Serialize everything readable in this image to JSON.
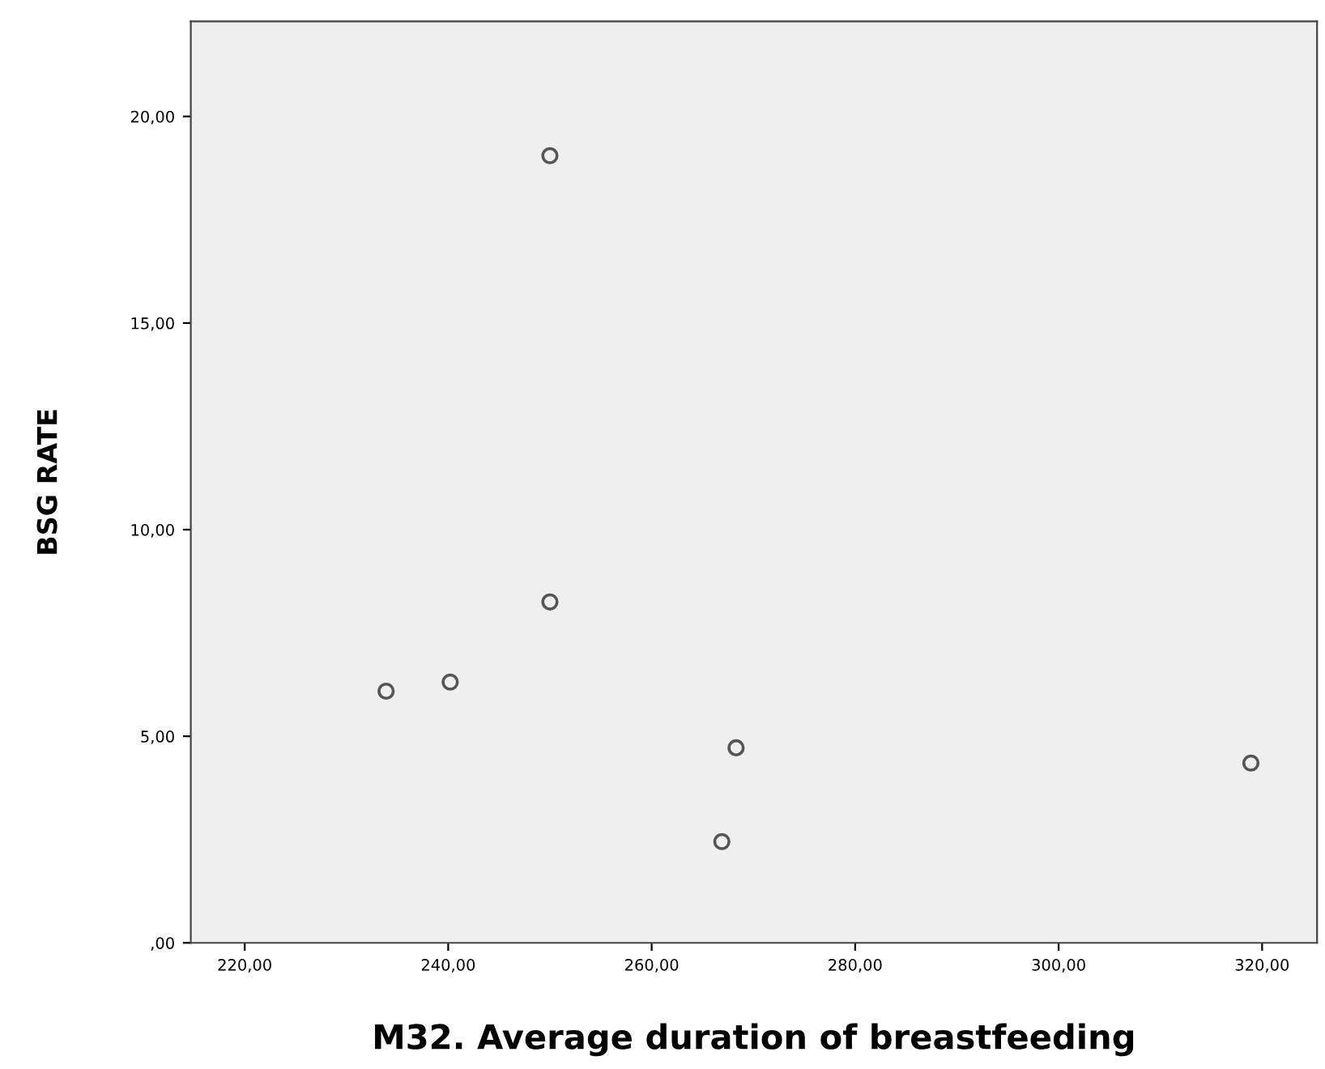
{
  "chart_data": {
    "type": "scatter",
    "xlabel": "M32. Average duration of breastfeeding",
    "ylabel": "BSG RATE",
    "x": [
      233.9,
      240.2,
      250.0,
      250.0,
      266.9,
      268.3,
      318.9
    ],
    "series": [
      {
        "color": "#555555",
        "values": [
          6.09,
          6.31,
          19.05,
          8.25,
          2.45,
          4.72,
          4.35
        ]
      }
    ],
    "marker": "circle",
    "grid": false,
    "xlim": [
      214.7,
      325.4
    ],
    "ylim": [
      0,
      22.3
    ],
    "xticks": [
      {
        "value": 220,
        "label": "220,00"
      },
      {
        "value": 240,
        "label": "240,00"
      },
      {
        "value": 260,
        "label": "260,00"
      },
      {
        "value": 280,
        "label": "280,00"
      },
      {
        "value": 300,
        "label": "300,00"
      },
      {
        "value": 320,
        "label": "320,00"
      }
    ],
    "yticks": [
      {
        "value": 0,
        "label": ",00"
      },
      {
        "value": 5,
        "label": "5,00"
      },
      {
        "value": 10,
        "label": "10,00"
      },
      {
        "value": 15,
        "label": "15,00"
      },
      {
        "value": 20,
        "label": "20,00"
      }
    ]
  }
}
